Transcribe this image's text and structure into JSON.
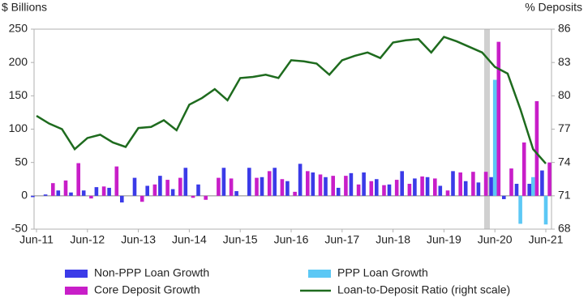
{
  "chart_data": {
    "type": "bar_line",
    "ylabel": "$ Billions",
    "y2label": "% Deposits",
    "categories": [
      "Jun-11",
      null,
      null,
      null,
      "Jun-12",
      null,
      null,
      null,
      "Jun-13",
      null,
      null,
      null,
      "Jun-14",
      null,
      null,
      null,
      "Jun-15",
      null,
      null,
      null,
      "Jun-16",
      null,
      null,
      null,
      "Jun-17",
      null,
      null,
      null,
      "Jun-18",
      null,
      null,
      null,
      "Jun-19",
      null,
      null,
      null,
      "Jun-20",
      null,
      null,
      null,
      "Jun-21"
    ],
    "series": [
      {
        "name": "Non-PPP Loan Growth",
        "color": "#3b3be8",
        "type": "bar",
        "values": [
          -2,
          2,
          8,
          5,
          8,
          13,
          12,
          -10,
          27,
          15,
          30,
          10,
          42,
          17,
          0,
          42,
          7,
          42,
          28,
          42,
          22,
          48,
          35,
          28,
          12,
          34,
          35,
          25,
          17,
          37,
          26,
          28,
          15,
          37,
          22,
          20,
          28,
          -5,
          18,
          18,
          38
        ]
      },
      {
        "name": "PPP Loan Growth",
        "color": "#5cc8f5",
        "type": "bar",
        "values": [
          null,
          null,
          null,
          null,
          null,
          null,
          null,
          null,
          null,
          null,
          null,
          null,
          null,
          null,
          null,
          null,
          null,
          null,
          null,
          null,
          null,
          null,
          null,
          null,
          null,
          null,
          null,
          null,
          null,
          null,
          null,
          null,
          null,
          null,
          null,
          null,
          174,
          0,
          -42,
          28,
          -43
        ]
      },
      {
        "name": "Core Deposit Growth",
        "color": "#c81ec8",
        "type": "bar",
        "values": [
          0,
          19,
          23,
          49,
          -4,
          14,
          44,
          0,
          -9,
          17,
          24,
          27,
          -3,
          -6,
          27,
          26,
          0,
          27,
          37,
          25,
          6,
          37,
          32,
          30,
          30,
          17,
          22,
          16,
          24,
          18,
          29,
          26,
          8,
          35,
          36,
          36,
          231,
          41,
          80,
          142,
          50
        ]
      },
      {
        "name": "Loan-to-Deposit Ratio (right scale)",
        "color": "#1e6b1e",
        "type": "line",
        "axis": "y2",
        "values": [
          78.2,
          77.5,
          77,
          75.2,
          76.2,
          76.5,
          75.8,
          75.4,
          77.1,
          77.2,
          77.8,
          76.9,
          79.2,
          79.8,
          80.6,
          79.6,
          81.6,
          81.7,
          81.9,
          81.6,
          83.2,
          83.1,
          82.9,
          81.9,
          83.2,
          83.6,
          83.9,
          83.4,
          84.8,
          85.0,
          85.1,
          83.9,
          85.3,
          84.9,
          84.4,
          83.9,
          82.6,
          82.0,
          78.8,
          75.2,
          73.9
        ]
      }
    ],
    "ylim": [
      -50,
      250
    ],
    "yticks": [
      -50,
      0,
      50,
      100,
      150,
      200,
      250
    ],
    "y2lim": [
      68,
      86
    ],
    "y2ticks": [
      68,
      71,
      74,
      77,
      80,
      83,
      86
    ],
    "grid": false
  }
}
